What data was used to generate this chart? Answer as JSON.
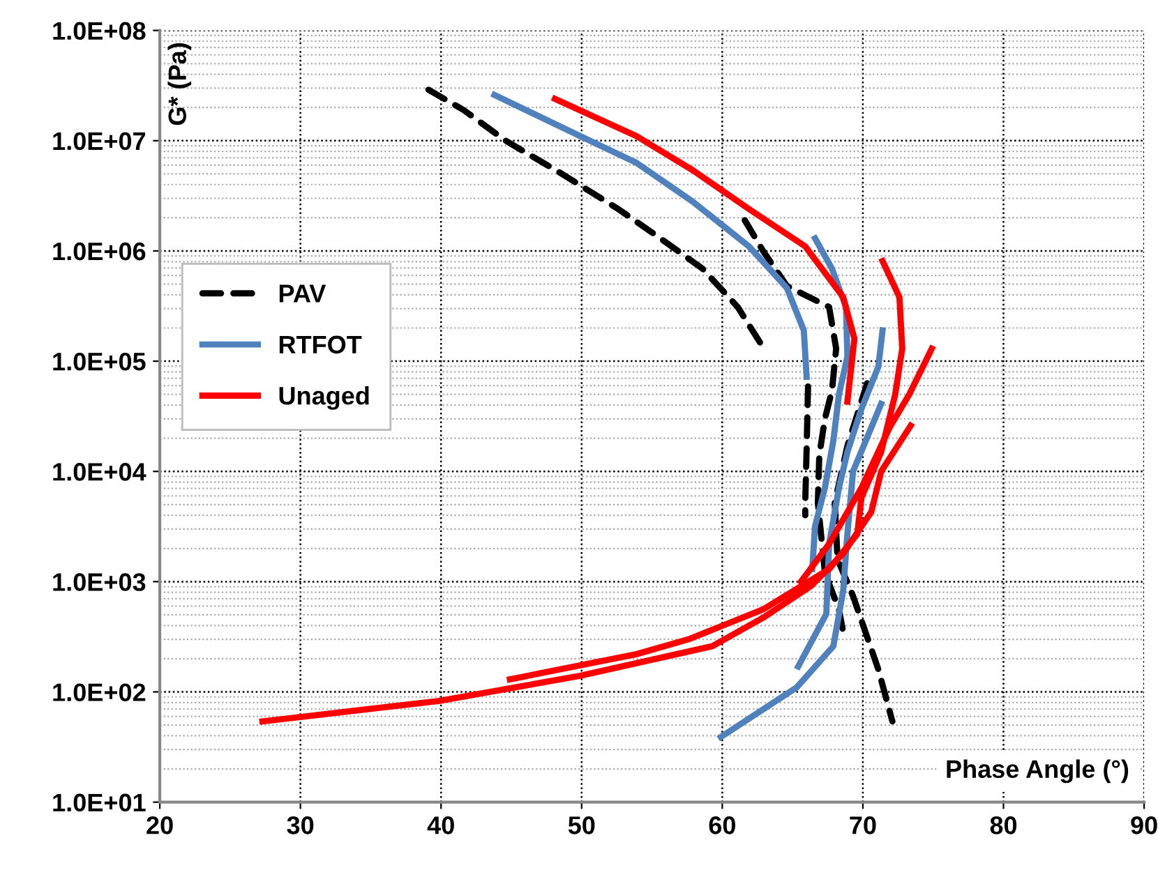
{
  "chart_data": {
    "type": "line",
    "xlabel": "Phase Angle (°)",
    "ylabel": "G* (Pa)",
    "xlim": [
      20,
      90
    ],
    "xticks": [
      20,
      30,
      40,
      50,
      60,
      70,
      80,
      90
    ],
    "ylim": [
      10,
      100000000
    ],
    "log": "y",
    "yticks": [
      {
        "value": 10,
        "label": "1.0E+01"
      },
      {
        "value": 100,
        "label": "1.0E+02"
      },
      {
        "value": 1000,
        "label": "1.0E+03"
      },
      {
        "value": 10000,
        "label": "1.0E+04"
      },
      {
        "value": 100000,
        "label": "1.0E+05"
      },
      {
        "value": 1000000,
        "label": "1.0E+06"
      },
      {
        "value": 10000000,
        "label": "1.0E+07"
      },
      {
        "value": 100000000,
        "label": "1.0E+08"
      }
    ],
    "grid": true,
    "legend": "left",
    "marker": "none",
    "series": [
      {
        "name": "PAV",
        "color": "#000000",
        "line_style": "dashed",
        "x": [
          39.1,
          41.6,
          44.6,
          48.6,
          52.6,
          55.6,
          58.6,
          61.1,
          62.8
        ],
        "values": [
          29000000,
          19000000,
          10000000,
          5000000,
          2400000,
          1300000,
          690000,
          310000,
          140000
        ]
      },
      {
        "color": "#000000",
        "line_style": "dashed",
        "x": [
          61.6,
          62.9,
          64.6,
          67.6,
          68.1,
          67.8,
          67.3,
          66.9,
          66.8,
          67.3,
          68.3,
          68.6
        ],
        "values": [
          1900000,
          1000000,
          480000,
          310000,
          130000,
          54000,
          30000,
          14000,
          5200,
          1200,
          560,
          350
        ]
      },
      {
        "color": "#000000",
        "line_style": "dashed",
        "x": [
          66.1,
          66.0,
          65.9,
          65.9
        ],
        "values": [
          59000,
          16000,
          5200,
          4000
        ]
      },
      {
        "color": "#000000",
        "line_style": "dashed",
        "x": [
          70.3,
          68.9,
          68.0,
          68.2,
          69.3,
          71.1,
          72.1
        ],
        "values": [
          63000,
          17000,
          5200,
          1600,
          740,
          160,
          54
        ]
      },
      {
        "name": "RTFOT",
        "color": "#4f81bd",
        "line_style": "solid",
        "x": [
          43.8,
          49.9,
          53.9,
          57.9,
          61.9,
          64.6,
          65.8,
          66.0
        ],
        "values": [
          26000000,
          11000000,
          6300000,
          2800000,
          1100000,
          460000,
          190000,
          72000
        ]
      },
      {
        "color": "#4f81bd",
        "line_style": "solid",
        "x": [
          66.6,
          67.8,
          68.8,
          68.9,
          68.3,
          67.9,
          67.3,
          66.6,
          66.4
        ],
        "values": [
          1300000,
          690000,
          310000,
          110000,
          50000,
          19000,
          7100,
          3200,
          1300
        ]
      },
      {
        "color": "#4f81bd",
        "line_style": "solid",
        "x": [
          71.4,
          71.1,
          69.9,
          68.9,
          68.3,
          67.6,
          67.4,
          65.4
        ],
        "values": [
          190000,
          89000,
          37000,
          15000,
          7100,
          2200,
          510,
          170
        ]
      },
      {
        "color": "#4f81bd",
        "line_style": "solid",
        "x": [
          71.3,
          69.3,
          68.9,
          68.6,
          67.9,
          65.3,
          59.9
        ],
        "values": [
          41000,
          10000,
          2700,
          830,
          260,
          110,
          39
        ]
      },
      {
        "name": "Unaged",
        "color": "#ff0000",
        "line_style": "solid",
        "x": [
          48.1,
          53.9,
          57.9,
          61.9,
          65.9,
          68.6,
          69.4,
          68.9
        ],
        "values": [
          24000000,
          11000000,
          5400000,
          2400000,
          1100000,
          380000,
          160000,
          43000
        ]
      },
      {
        "color": "#ff0000",
        "line_style": "solid",
        "x": [
          71.4,
          72.6,
          72.8,
          72.3,
          71.3,
          69.9,
          69.6,
          67.6,
          62.9,
          57.6,
          53.9,
          44.9
        ],
        "values": [
          810000,
          380000,
          130000,
          50000,
          15000,
          5800,
          2700,
          1300,
          560,
          300,
          220,
          130
        ]
      },
      {
        "color": "#ff0000",
        "line_style": "solid",
        "x": [
          74.9,
          73.3,
          71.9,
          69.9,
          67.6,
          65.6
        ],
        "values": [
          130000,
          50000,
          25000,
          7100,
          2200,
          1000
        ]
      },
      {
        "color": "#ff0000",
        "line_style": "solid",
        "x": [
          73.4,
          71.3,
          70.6,
          68.6,
          66.3,
          62.9,
          59.3,
          49.9,
          39.9,
          27.3
        ],
        "values": [
          26000,
          10000,
          4300,
          1800,
          910,
          470,
          260,
          140,
          83,
          54
        ]
      }
    ]
  }
}
